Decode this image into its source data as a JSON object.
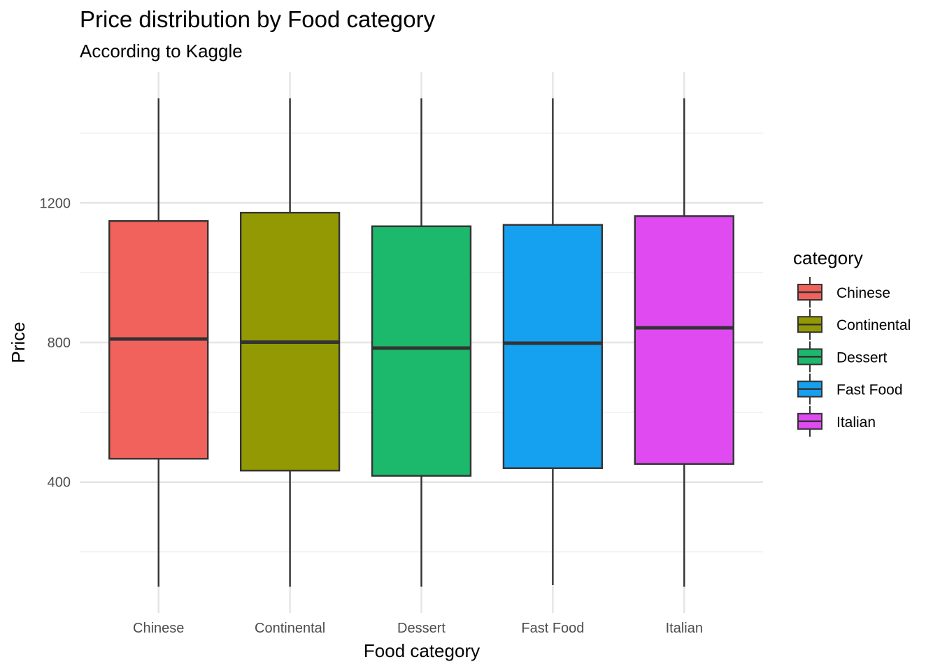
{
  "title": "Price distribution by Food category",
  "subtitle": "According to Kaggle",
  "chart_data": {
    "type": "boxplot",
    "xlabel": "Food category",
    "ylabel": "Price",
    "categories": [
      "Chinese",
      "Continental",
      "Dessert",
      "Fast Food",
      "Italian"
    ],
    "series": [
      {
        "name": "Chinese",
        "color": "#F2625D",
        "min": 100,
        "q1": 467,
        "median": 810,
        "q3": 1148,
        "max": 1500
      },
      {
        "name": "Continental",
        "color": "#939903",
        "min": 100,
        "q1": 433,
        "median": 801,
        "q3": 1172,
        "max": 1500
      },
      {
        "name": "Dessert",
        "color": "#1CB86C",
        "min": 100,
        "q1": 418,
        "median": 784,
        "q3": 1133,
        "max": 1500
      },
      {
        "name": "Fast Food",
        "color": "#16A0F0",
        "min": 105,
        "q1": 440,
        "median": 798,
        "q3": 1137,
        "max": 1500
      },
      {
        "name": "Italian",
        "color": "#DF4BF1",
        "min": 100,
        "q1": 452,
        "median": 842,
        "q3": 1162,
        "max": 1500
      }
    ],
    "yticks": [
      400,
      800,
      1200
    ],
    "ylim": [
      25,
      1575
    ],
    "grid": true,
    "legend": {
      "title": "category",
      "position": "right"
    }
  }
}
